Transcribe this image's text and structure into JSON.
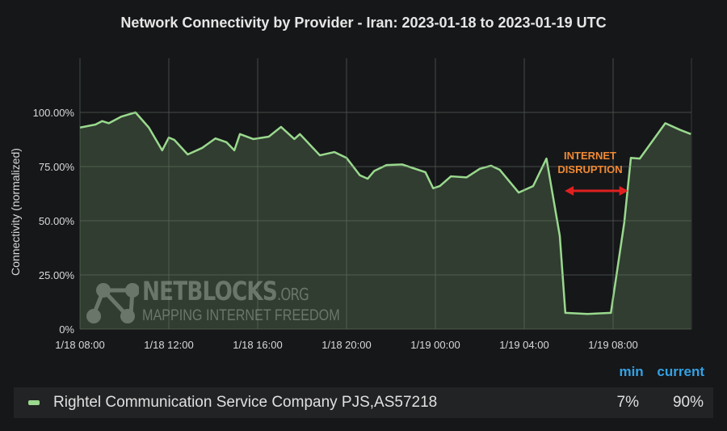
{
  "chart_data": {
    "type": "area",
    "title": "Network Connectivity by Provider - Iran: 2023-01-18 to 2023-01-19 UTC",
    "xlabel": "",
    "ylabel": "Connectivity (normalized)",
    "xlim": [
      "2023-01-18 08:00",
      "2023-01-19 11:30"
    ],
    "ylim": [
      0,
      100
    ],
    "grid": true,
    "legend": "bottom",
    "x_ticks": [
      "1/18 08:00",
      "1/18 12:00",
      "1/18 16:00",
      "1/18 20:00",
      "1/19 00:00",
      "1/19 04:00",
      "1/19 08:00"
    ],
    "y_ticks": [
      "0%",
      "25.00%",
      "50.00%",
      "75.00%",
      "100.00%"
    ],
    "series": [
      {
        "name": "Rightel Communication Service Company PJS,AS57218",
        "color": "#9ad98e",
        "x": [
          "2023-01-18 08:00",
          "2023-01-18 08:42",
          "2023-01-18 09:00",
          "2023-01-18 09:18",
          "2023-01-18 09:51",
          "2023-01-18 10:30",
          "2023-01-18 11:06",
          "2023-01-18 11:42",
          "2023-01-18 12:00",
          "2023-01-18 12:15",
          "2023-01-18 12:51",
          "2023-01-18 13:30",
          "2023-01-18 14:06",
          "2023-01-18 14:36",
          "2023-01-18 14:57",
          "2023-01-18 15:12",
          "2023-01-18 15:48",
          "2023-01-18 16:30",
          "2023-01-18 17:03",
          "2023-01-18 17:39",
          "2023-01-18 17:54",
          "2023-01-18 18:48",
          "2023-01-18 19:27",
          "2023-01-18 20:00",
          "2023-01-18 20:36",
          "2023-01-18 20:57",
          "2023-01-18 21:15",
          "2023-01-18 21:48",
          "2023-01-18 22:30",
          "2023-01-18 23:33",
          "2023-01-18 23:54",
          "2023-01-19 00:12",
          "2023-01-19 00:42",
          "2023-01-19 01:24",
          "2023-01-19 02:00",
          "2023-01-19 02:30",
          "2023-01-19 02:54",
          "2023-01-19 03:45",
          "2023-01-19 04:24",
          "2023-01-19 05:00",
          "2023-01-19 05:36",
          "2023-01-19 05:51",
          "2023-01-19 06:51",
          "2023-01-19 07:54",
          "2023-01-19 08:30",
          "2023-01-19 08:48",
          "2023-01-19 09:12",
          "2023-01-19 10:21",
          "2023-01-19 11:00",
          "2023-01-19 11:30"
        ],
        "values": [
          93,
          94.4,
          96,
          95,
          98,
          100,
          93,
          82.5,
          88.4,
          87.3,
          80.6,
          83.6,
          88,
          86.2,
          82.5,
          90,
          87.7,
          88.8,
          93.3,
          87.7,
          90,
          80.2,
          81.7,
          79,
          71,
          69.4,
          73,
          75.7,
          76,
          72.4,
          65,
          66,
          70.5,
          70,
          74,
          75.4,
          73.5,
          63,
          66,
          78.7,
          43,
          7.5,
          7,
          7.5,
          49,
          79,
          78.7,
          95,
          92,
          90
        ]
      }
    ],
    "annotations": [
      {
        "text_line1": "INTERNET",
        "text_line2": "DISRUPTION",
        "from": "2023-01-19 05:45",
        "to": "2023-01-19 08:45",
        "color": "#f08a35",
        "arrow_color": "#e02020"
      }
    ]
  },
  "legend": {
    "headers": {
      "min": "min",
      "current": "current"
    },
    "rows": [
      {
        "name": "Rightel Communication Service Company PJS,AS57218",
        "min": "7%",
        "current": "90%"
      }
    ],
    "header_color": "#33a2e5"
  },
  "watermark": {
    "brand": "NETBLOCKS",
    "suffix": ".ORG",
    "tagline": "MAPPING INTERNET FREEDOM"
  }
}
